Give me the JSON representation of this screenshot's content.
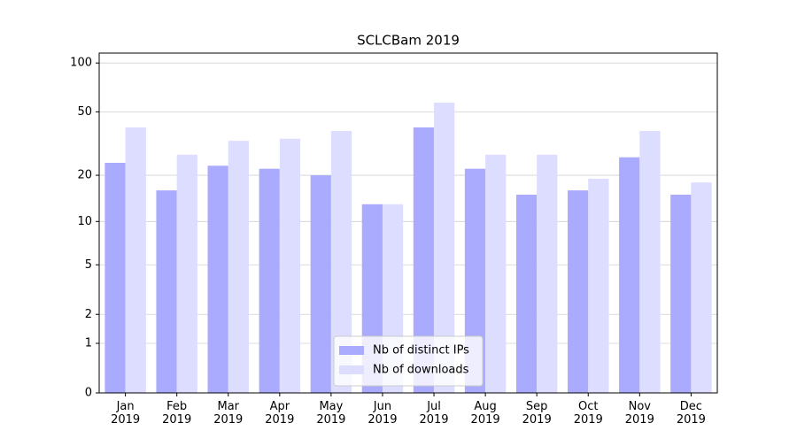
{
  "chart_data": {
    "type": "bar",
    "title": "SCLCBam 2019",
    "categories": [
      "Jan\n2019",
      "Feb\n2019",
      "Mar\n2019",
      "Apr\n2019",
      "May\n2019",
      "Jun\n2019",
      "Jul\n2019",
      "Aug\n2019",
      "Sep\n2019",
      "Oct\n2019",
      "Nov\n2019",
      "Dec\n2019"
    ],
    "series": [
      {
        "name": "Nb of distinct IPs",
        "color": "#aaaaff",
        "values": [
          24,
          16,
          23,
          22,
          20,
          13,
          40,
          22,
          15,
          16,
          26,
          15
        ]
      },
      {
        "name": "Nb of downloads",
        "color": "#ddddff",
        "values": [
          40,
          27,
          33,
          34,
          38,
          13,
          57,
          27,
          27,
          19,
          38,
          18
        ]
      }
    ],
    "yscale": "log1p",
    "ylim": [
      0,
      115
    ],
    "yticks": [
      0,
      1,
      2,
      5,
      10,
      20,
      50,
      100
    ],
    "grid": true,
    "legend": "lower center"
  }
}
